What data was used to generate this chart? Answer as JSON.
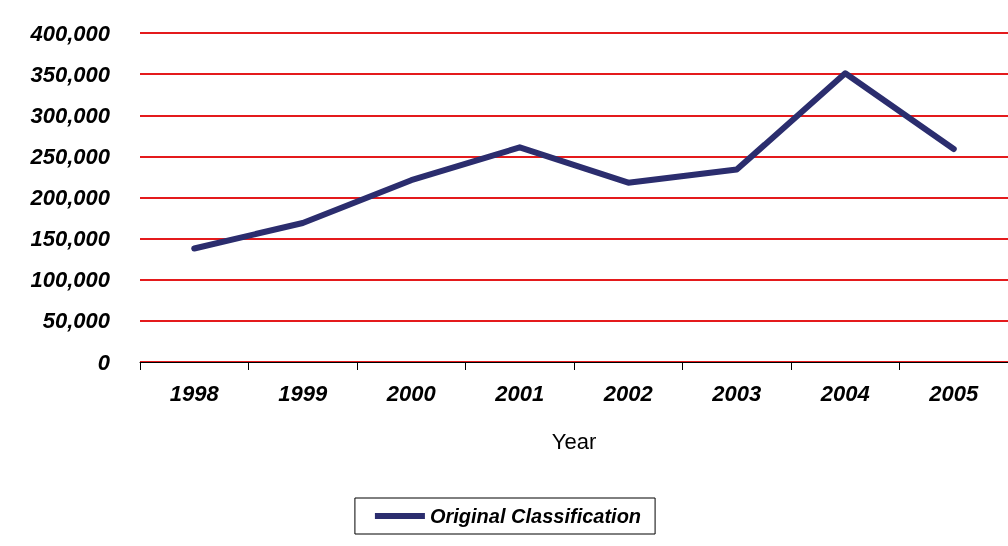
{
  "chart_data": {
    "type": "line",
    "xlabel": "Year",
    "categories": [
      "1998",
      "1999",
      "2000",
      "2001",
      "2002",
      "2003",
      "2004",
      "2005"
    ],
    "series": [
      {
        "name": "Original Classification",
        "color": "#2b2d6e",
        "values": [
          138000,
          169000,
          221000,
          261000,
          218000,
          234000,
          351000,
          259000
        ]
      }
    ],
    "ylim": [
      0,
      400000
    ],
    "yticks": [
      {
        "value": 0,
        "label": "0"
      },
      {
        "value": 50000,
        "label": "50,000"
      },
      {
        "value": 100000,
        "label": "100,000"
      },
      {
        "value": 150000,
        "label": "150,000"
      },
      {
        "value": 200000,
        "label": "200,000"
      },
      {
        "value": 250000,
        "label": "250,000"
      },
      {
        "value": 300000,
        "label": "300,000"
      },
      {
        "value": 350000,
        "label": "350,000"
      },
      {
        "value": 400000,
        "label": "400,000"
      }
    ],
    "grid": "y",
    "legend": "bottom",
    "marker": "none",
    "line_style": "solid"
  }
}
